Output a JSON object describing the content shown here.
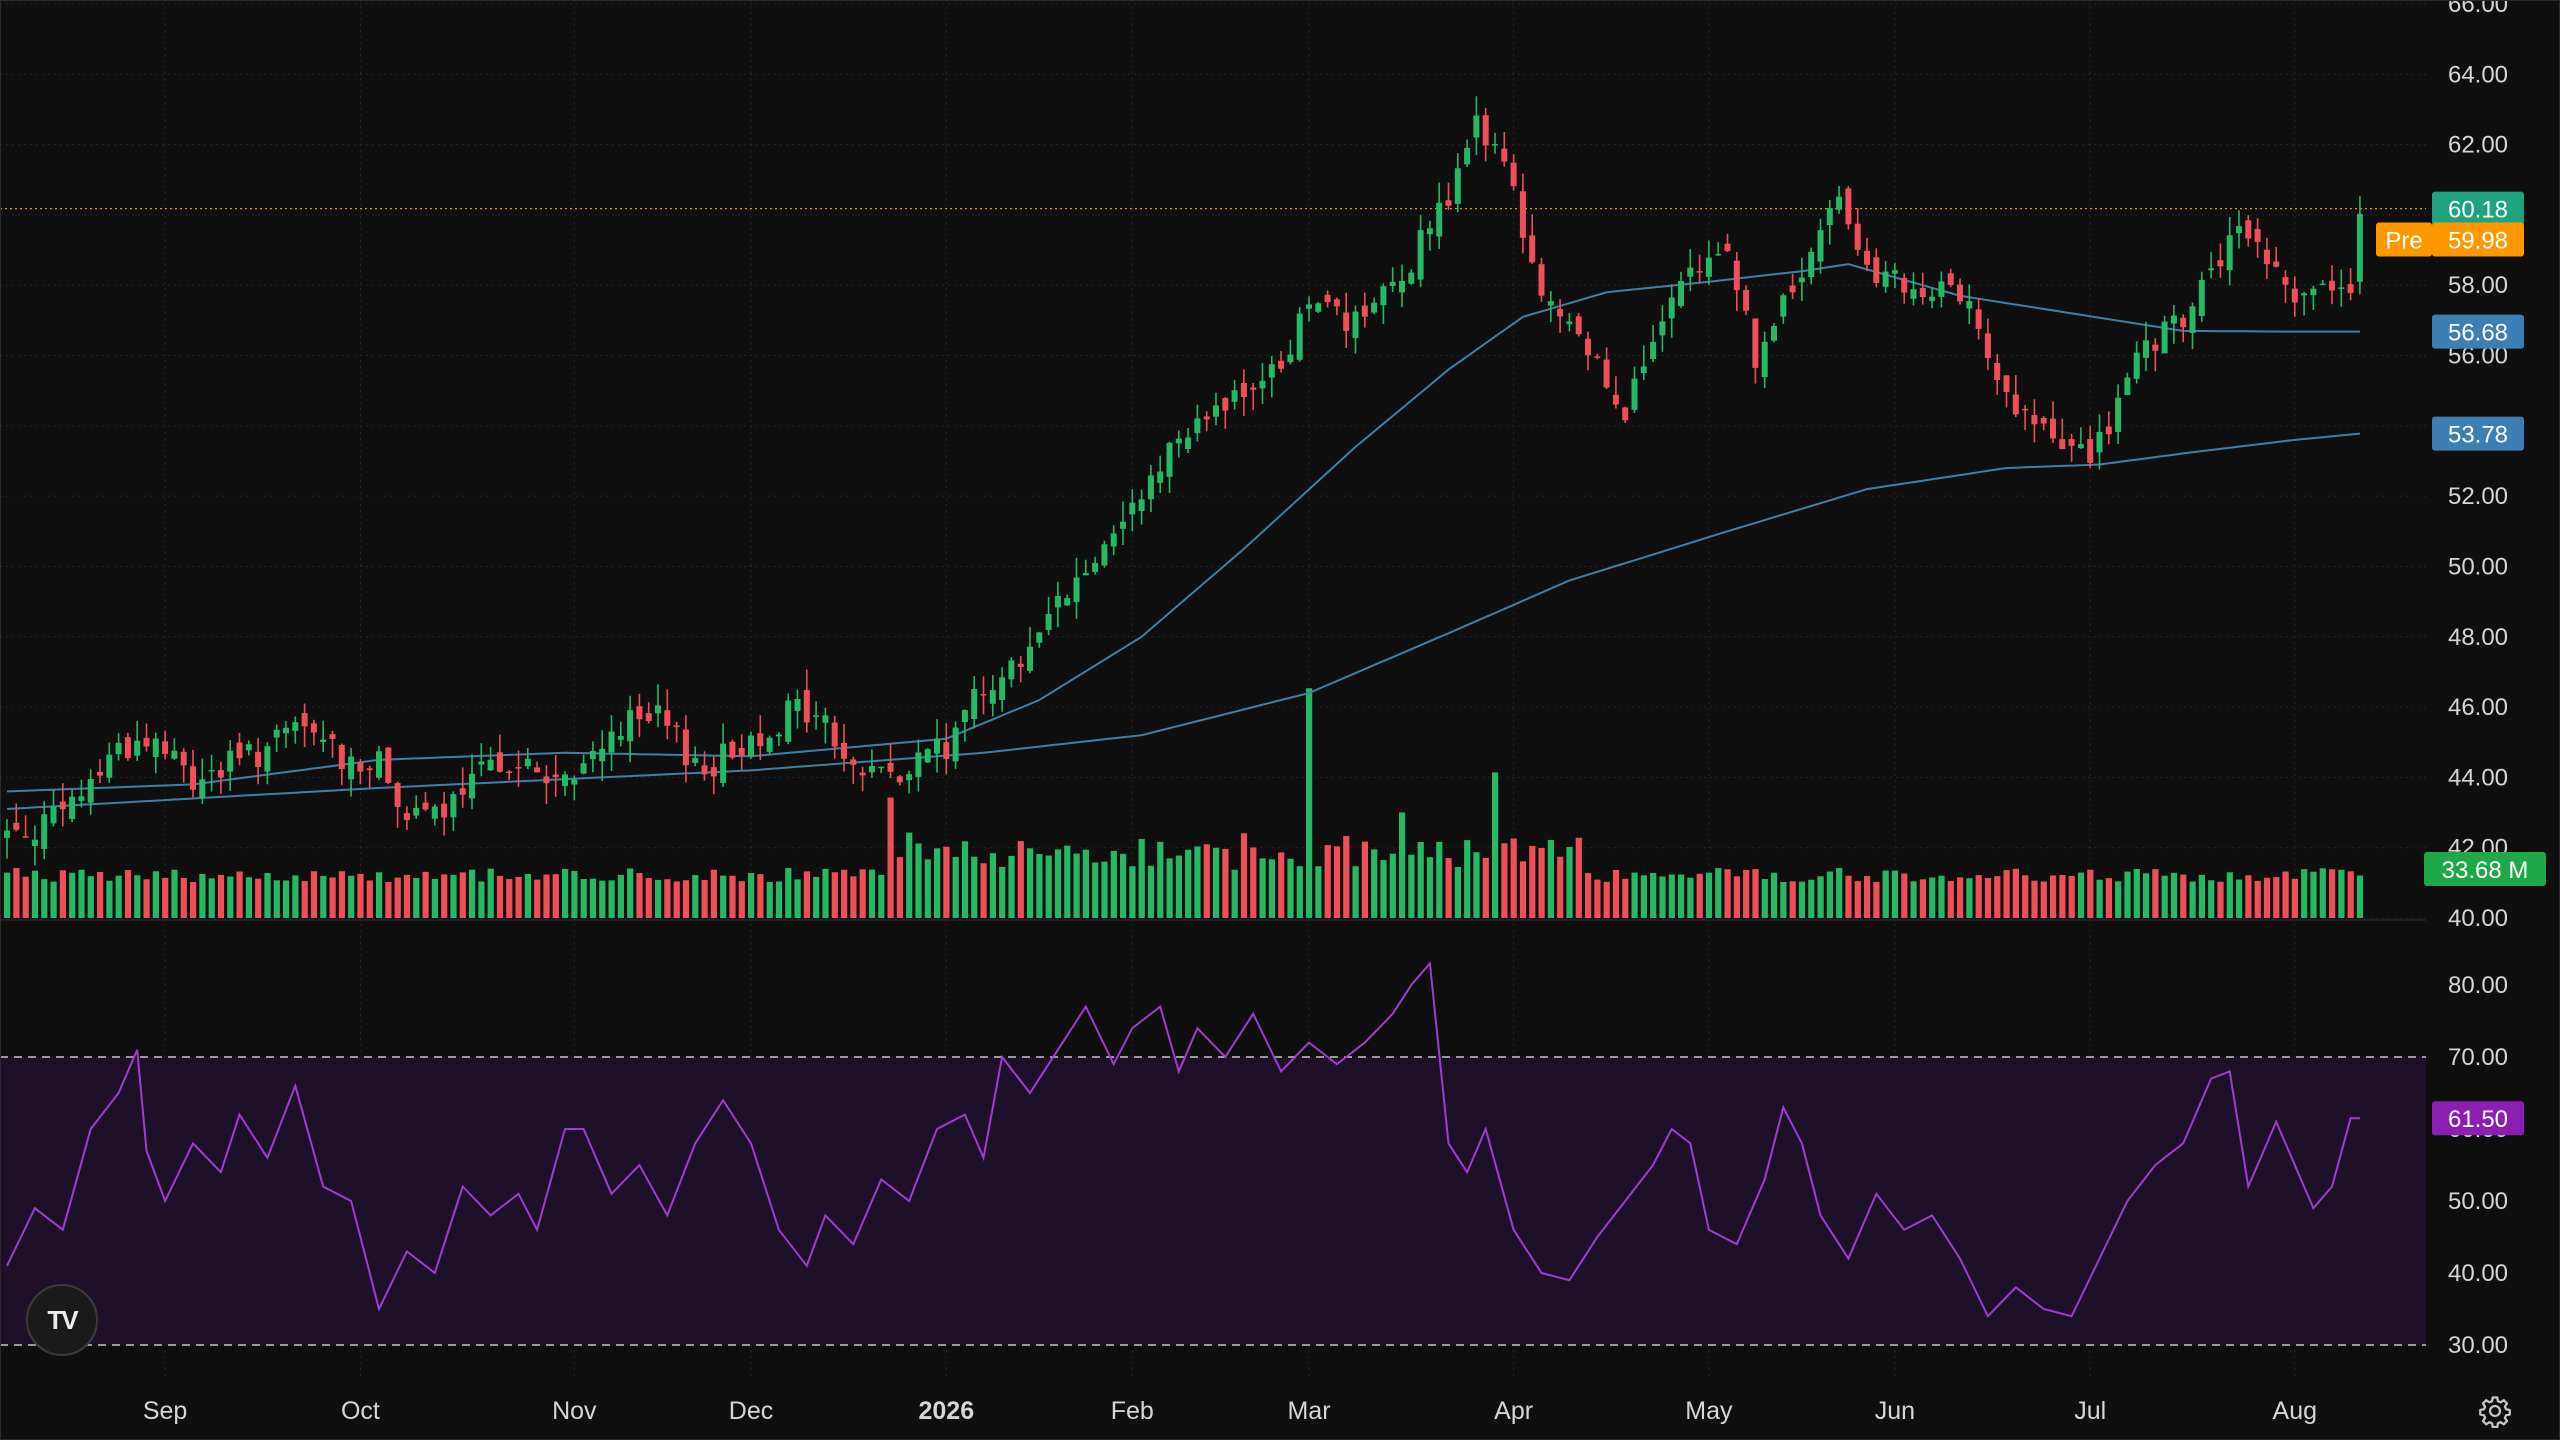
{
  "colors": {
    "background": "#0f0f0f",
    "up": "#26b865",
    "down": "#ef4f58",
    "ma_short": "#3f7fa8",
    "ma_long": "#3f7fa8",
    "rsi_line": "#a03cd0",
    "rsi_band": "#1d1028",
    "last_price_badge": "#1fa37f",
    "pre_badge": "#ff9800",
    "ma_badge": "#3c7fb4",
    "volume_badge": "#1fa84a",
    "rsi_badge": "#8a1fb2"
  },
  "chart_data": [
    {
      "type": "candlestick",
      "panel": "price",
      "y_axis_ticks": [
        "66.00",
        "64.00",
        "62.00",
        "60.00",
        "58.00",
        "56.00",
        "54.00",
        "52.00",
        "50.00",
        "48.00",
        "46.00",
        "44.00",
        "42.00",
        "40.00"
      ],
      "ylim": [
        40,
        66
      ],
      "x_axis_ticks": [
        {
          "label": "Sep",
          "index": 17,
          "bold": false
        },
        {
          "label": "Oct",
          "index": 38,
          "bold": false
        },
        {
          "label": "Nov",
          "index": 61,
          "bold": false
        },
        {
          "label": "Dec",
          "index": 80,
          "bold": false
        },
        {
          "label": "2026",
          "index": 101,
          "bold": true
        },
        {
          "label": "Feb",
          "index": 121,
          "bold": false
        },
        {
          "label": "Mar",
          "index": 140,
          "bold": false
        },
        {
          "label": "Apr",
          "index": 162,
          "bold": false
        },
        {
          "label": "May",
          "index": 183,
          "bold": false
        },
        {
          "label": "Jun",
          "index": 203,
          "bold": false
        },
        {
          "label": "Jul",
          "index": 224,
          "bold": false
        },
        {
          "label": "Aug",
          "index": 246,
          "bold": false
        }
      ],
      "close_anchors": [
        [
          0,
          42.4
        ],
        [
          6,
          42.9
        ],
        [
          12,
          44.9
        ],
        [
          16,
          45.0
        ],
        [
          20,
          43.9
        ],
        [
          27,
          44.7
        ],
        [
          32,
          45.4
        ],
        [
          36,
          44.6
        ],
        [
          40,
          44.3
        ],
        [
          44,
          42.7
        ],
        [
          48,
          43.2
        ],
        [
          53,
          44.6
        ],
        [
          58,
          44.0
        ],
        [
          61,
          43.8
        ],
        [
          65,
          45.4
        ],
        [
          70,
          45.6
        ],
        [
          75,
          44.2
        ],
        [
          80,
          45.1
        ],
        [
          85,
          46.0
        ],
        [
          88,
          45.5
        ],
        [
          91,
          44.2
        ],
        [
          96,
          44.3
        ],
        [
          101,
          44.8
        ],
        [
          104,
          46.6
        ],
        [
          107,
          46.8
        ],
        [
          112,
          48.4
        ],
        [
          117,
          50.3
        ],
        [
          122,
          52.3
        ],
        [
          126,
          53.9
        ],
        [
          130,
          54.7
        ],
        [
          135,
          55.0
        ],
        [
          140,
          57.3
        ],
        [
          146,
          56.8
        ],
        [
          151,
          58.8
        ],
        [
          155,
          60.3
        ],
        [
          158,
          62.8
        ],
        [
          162,
          60.5
        ],
        [
          165,
          57.8
        ],
        [
          170,
          56.2
        ],
        [
          174,
          54.6
        ],
        [
          180,
          57.8
        ],
        [
          185,
          59.2
        ],
        [
          188,
          55.9
        ],
        [
          193,
          58.3
        ],
        [
          197,
          60.5
        ],
        [
          201,
          58.3
        ],
        [
          206,
          57.5
        ],
        [
          211,
          58.0
        ],
        [
          214,
          55.0
        ],
        [
          218,
          54.0
        ],
        [
          222,
          53.2
        ],
        [
          225,
          53.4
        ],
        [
          229,
          55.8
        ],
        [
          234,
          57.0
        ],
        [
          238,
          58.8
        ],
        [
          241,
          59.5
        ],
        [
          245,
          58.0
        ],
        [
          249,
          57.8
        ],
        [
          252,
          57.4
        ],
        [
          253,
          60.18
        ]
      ],
      "ma_short_anchors": [
        [
          0,
          43.6
        ],
        [
          20,
          43.8
        ],
        [
          40,
          44.5
        ],
        [
          60,
          44.7
        ],
        [
          80,
          44.6
        ],
        [
          101,
          45.1
        ],
        [
          111,
          46.2
        ],
        [
          122,
          48.0
        ],
        [
          133,
          50.5
        ],
        [
          145,
          53.4
        ],
        [
          155,
          55.6
        ],
        [
          163,
          57.1
        ],
        [
          172,
          57.8
        ],
        [
          183,
          58.1
        ],
        [
          193,
          58.4
        ],
        [
          198,
          58.6
        ],
        [
          210,
          57.7
        ],
        [
          222,
          57.2
        ],
        [
          234,
          56.7
        ],
        [
          246,
          56.68
        ],
        [
          253,
          56.68
        ]
      ],
      "ma_long_anchors": [
        [
          0,
          43.1
        ],
        [
          40,
          43.7
        ],
        [
          80,
          44.2
        ],
        [
          105,
          44.7
        ],
        [
          122,
          45.2
        ],
        [
          140,
          46.4
        ],
        [
          155,
          48.1
        ],
        [
          168,
          49.6
        ],
        [
          185,
          51.0
        ],
        [
          200,
          52.2
        ],
        [
          215,
          52.8
        ],
        [
          225,
          52.9
        ],
        [
          235,
          53.25
        ],
        [
          246,
          53.6
        ],
        [
          253,
          53.78
        ]
      ]
    },
    {
      "type": "bar",
      "panel": "volume",
      "unit": "M",
      "last_value": 33.68,
      "spikes": [
        [
          95,
          2.1
        ],
        [
          140,
          3.2
        ],
        [
          150,
          1.9
        ],
        [
          160,
          2.0
        ]
      ]
    },
    {
      "type": "line",
      "panel": "rsi",
      "y_axis_ticks": [
        "80.00",
        "70.00",
        "60.00",
        "50.00",
        "40.00",
        "30.00"
      ],
      "ylim": [
        30,
        85
      ],
      "overbought": 70,
      "oversold": 30,
      "last_value": 61.5,
      "anchors": [
        [
          0,
          41
        ],
        [
          3,
          49
        ],
        [
          6,
          46
        ],
        [
          9,
          60
        ],
        [
          12,
          65
        ],
        [
          14,
          71
        ],
        [
          15,
          57
        ],
        [
          17,
          50
        ],
        [
          20,
          58
        ],
        [
          23,
          54
        ],
        [
          25,
          62
        ],
        [
          28,
          56
        ],
        [
          31,
          66
        ],
        [
          34,
          52
        ],
        [
          37,
          50
        ],
        [
          40,
          35
        ],
        [
          43,
          43
        ],
        [
          46,
          40
        ],
        [
          49,
          52
        ],
        [
          52,
          48
        ],
        [
          55,
          51
        ],
        [
          57,
          46
        ],
        [
          60,
          60
        ],
        [
          62,
          60
        ],
        [
          65,
          51
        ],
        [
          68,
          55
        ],
        [
          71,
          48
        ],
        [
          74,
          58
        ],
        [
          77,
          64
        ],
        [
          80,
          58
        ],
        [
          83,
          46
        ],
        [
          86,
          41
        ],
        [
          88,
          48
        ],
        [
          91,
          44
        ],
        [
          94,
          53
        ],
        [
          97,
          50
        ],
        [
          100,
          60
        ],
        [
          103,
          62
        ],
        [
          105,
          56
        ],
        [
          107,
          70
        ],
        [
          110,
          65
        ],
        [
          113,
          71
        ],
        [
          116,
          77
        ],
        [
          119,
          69
        ],
        [
          121,
          74
        ],
        [
          124,
          77
        ],
        [
          126,
          68
        ],
        [
          128,
          74
        ],
        [
          131,
          70
        ],
        [
          134,
          76
        ],
        [
          137,
          68
        ],
        [
          140,
          72
        ],
        [
          143,
          69
        ],
        [
          146,
          72
        ],
        [
          149,
          76
        ],
        [
          151,
          80
        ],
        [
          153,
          83
        ],
        [
          155,
          58
        ],
        [
          157,
          54
        ],
        [
          159,
          60
        ],
        [
          162,
          46
        ],
        [
          165,
          40
        ],
        [
          168,
          39
        ],
        [
          171,
          45
        ],
        [
          174,
          50
        ],
        [
          177,
          55
        ],
        [
          179,
          60
        ],
        [
          181,
          58
        ],
        [
          183,
          46
        ],
        [
          186,
          44
        ],
        [
          189,
          53
        ],
        [
          191,
          63
        ],
        [
          193,
          58
        ],
        [
          195,
          48
        ],
        [
          198,
          42
        ],
        [
          201,
          51
        ],
        [
          204,
          46
        ],
        [
          207,
          48
        ],
        [
          210,
          42
        ],
        [
          213,
          34
        ],
        [
          216,
          38
        ],
        [
          219,
          35
        ],
        [
          222,
          34
        ],
        [
          225,
          42
        ],
        [
          228,
          50
        ],
        [
          231,
          55
        ],
        [
          234,
          58
        ],
        [
          237,
          67
        ],
        [
          239,
          68
        ],
        [
          241,
          52
        ],
        [
          244,
          61
        ],
        [
          246,
          55
        ],
        [
          248,
          49
        ],
        [
          250,
          52
        ],
        [
          252,
          61.5
        ]
      ]
    }
  ],
  "badges": {
    "last_price": "60.18",
    "pre_label": "Pre",
    "pre_price": "59.98",
    "ma_short": "56.68",
    "ma_long": "53.78",
    "volume": "33.68 M",
    "rsi": "61.50"
  },
  "icons": {
    "logo": "tradingview-logo-icon",
    "settings": "gear-icon"
  },
  "logo_text": "TV"
}
